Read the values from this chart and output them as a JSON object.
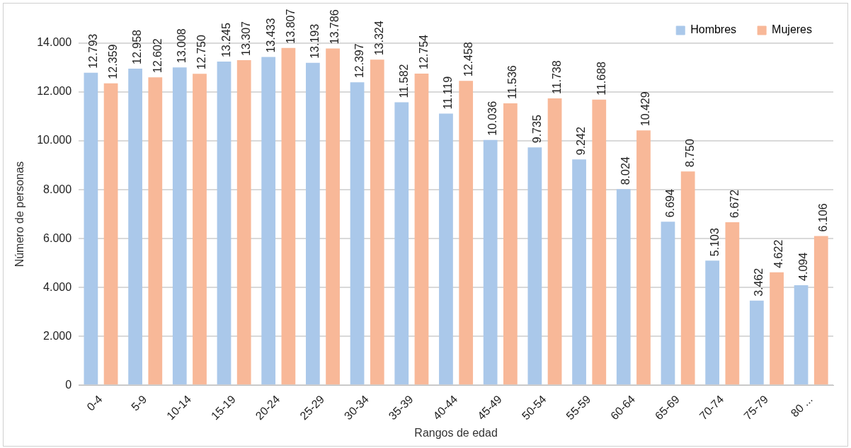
{
  "chart_data": {
    "type": "bar",
    "xlabel": "Rangos de edad",
    "ylabel": "Número de personas",
    "categories": [
      "0-4",
      "5-9",
      "10-14",
      "15-19",
      "20-24",
      "25-29",
      "30-34",
      "35-39",
      "40-44",
      "45-49",
      "50-54",
      "55-59",
      "60-64",
      "65-69",
      "70-74",
      "75-79",
      "80 ..."
    ],
    "series": [
      {
        "name": "Hombres",
        "color": "#aac8ea",
        "values": [
          12793,
          12958,
          13008,
          13245,
          13433,
          13193,
          12397,
          11582,
          11119,
          10036,
          9735,
          9242,
          8024,
          6694,
          5103,
          3462,
          4094
        ],
        "value_labels": [
          "12.793",
          "12.958",
          "13.008",
          "13.245",
          "13.433",
          "13.193",
          "12.397",
          "11.582",
          "11.119",
          "10.036",
          "9.735",
          "9.242",
          "8.024",
          "6.694",
          "5.103",
          "3.462",
          "4.094"
        ]
      },
      {
        "name": "Mujeres",
        "color": "#f8b898",
        "values": [
          12359,
          12602,
          12750,
          13307,
          13807,
          13786,
          13324,
          12754,
          12458,
          11536,
          11738,
          11688,
          10429,
          8750,
          6672,
          4622,
          6106
        ],
        "value_labels": [
          "12.359",
          "12.602",
          "12.750",
          "13.307",
          "13.807",
          "13.786",
          "13.324",
          "12.754",
          "12.458",
          "11.536",
          "11.738",
          "11.688",
          "10.429",
          "8.750",
          "6.672",
          "4.622",
          "6.106"
        ]
      }
    ],
    "ylim": [
      0,
      14000
    ],
    "yticks": [
      {
        "value": 0,
        "label": "0"
      },
      {
        "value": 2000,
        "label": "2.000"
      },
      {
        "value": 4000,
        "label": "4.000"
      },
      {
        "value": 6000,
        "label": "6.000"
      },
      {
        "value": 8000,
        "label": "8.000"
      },
      {
        "value": 10000,
        "label": "10.000"
      },
      {
        "value": 12000,
        "label": "12.000"
      },
      {
        "value": 14000,
        "label": "14.000"
      }
    ],
    "grid": "y",
    "legend": "top right"
  }
}
